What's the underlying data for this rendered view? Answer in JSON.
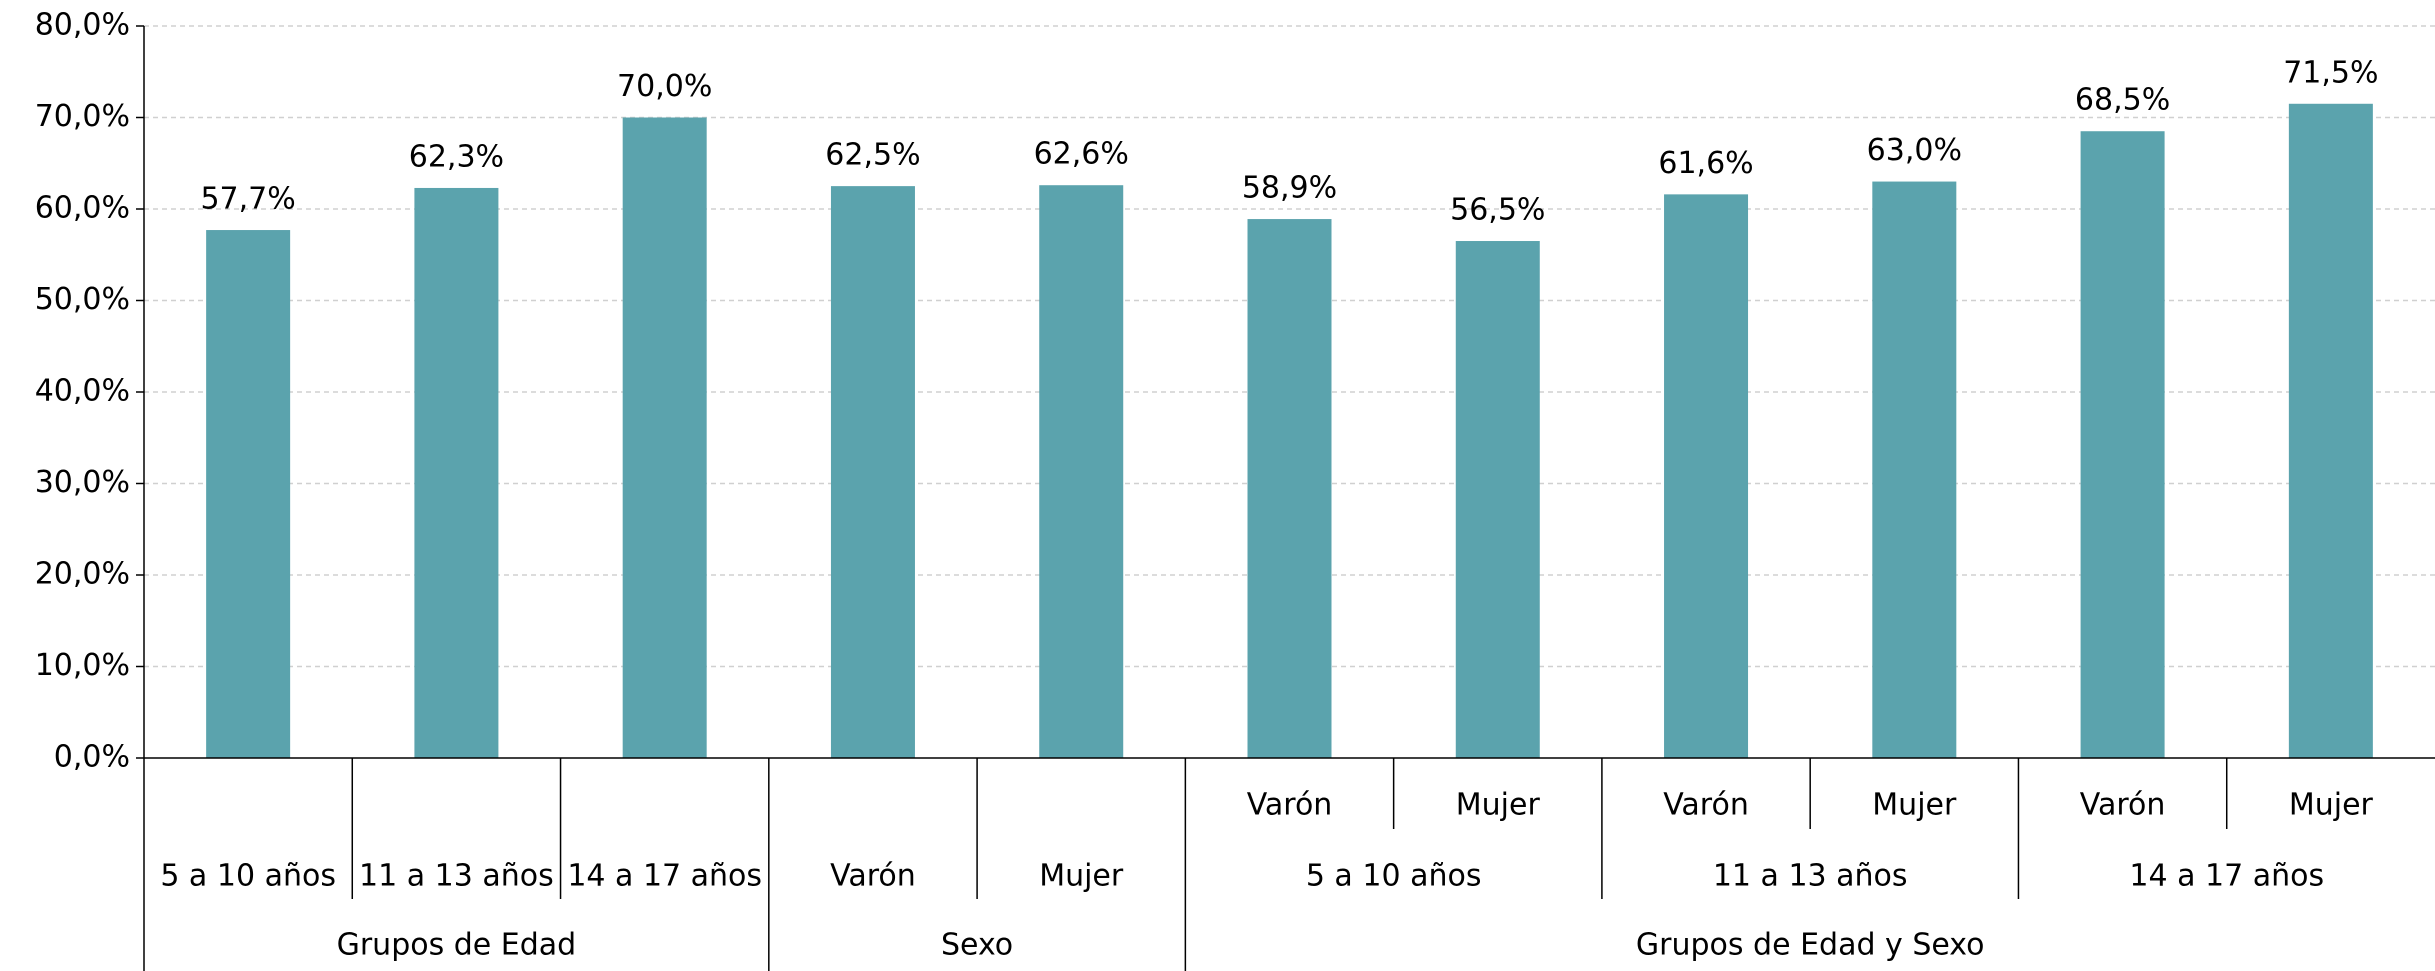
{
  "chart_data": {
    "type": "bar",
    "color": "#5ba3ad",
    "grid": true,
    "ylim": [
      0,
      80
    ],
    "yticks": [
      {
        "value": 0,
        "label": "0,0%"
      },
      {
        "value": 10,
        "label": "10,0%"
      },
      {
        "value": 20,
        "label": "20,0%"
      },
      {
        "value": 30,
        "label": "30,0%"
      },
      {
        "value": 40,
        "label": "40,0%"
      },
      {
        "value": 50,
        "label": "50,0%"
      },
      {
        "value": 60,
        "label": "60,0%"
      },
      {
        "value": 70,
        "label": "70,0%"
      },
      {
        "value": 80,
        "label": "80,0%"
      }
    ],
    "groups": [
      {
        "label": "Grupos de Edad",
        "categories": [
          "5 a 10 años",
          "11 a 13 años",
          "14 a 17 años"
        ],
        "values": [
          57.7,
          62.3,
          70.0
        ],
        "value_labels": [
          "57,7%",
          "62,3%",
          "70,0%"
        ]
      },
      {
        "label": "Sexo",
        "categories": [
          "Varón",
          "Mujer"
        ],
        "values": [
          62.5,
          62.6
        ],
        "value_labels": [
          "62,5%",
          "62,6%"
        ]
      },
      {
        "label": "Grupos de Edad y Sexo",
        "subgroups": [
          {
            "label": "5 a 10 años",
            "categories": [
              "Varón",
              "Mujer"
            ],
            "values": [
              58.9,
              56.5
            ],
            "value_labels": [
              "58,9%",
              "56,5%"
            ]
          },
          {
            "label": "11 a 13 años",
            "categories": [
              "Varón",
              "Mujer"
            ],
            "values": [
              61.6,
              63.0
            ],
            "value_labels": [
              "61,6%",
              "63,0%"
            ]
          },
          {
            "label": "14 a 17 años",
            "categories": [
              "Varón",
              "Mujer"
            ],
            "values": [
              68.5,
              71.5
            ],
            "value_labels": [
              "68,5%",
              "71,5%"
            ]
          }
        ]
      }
    ]
  }
}
